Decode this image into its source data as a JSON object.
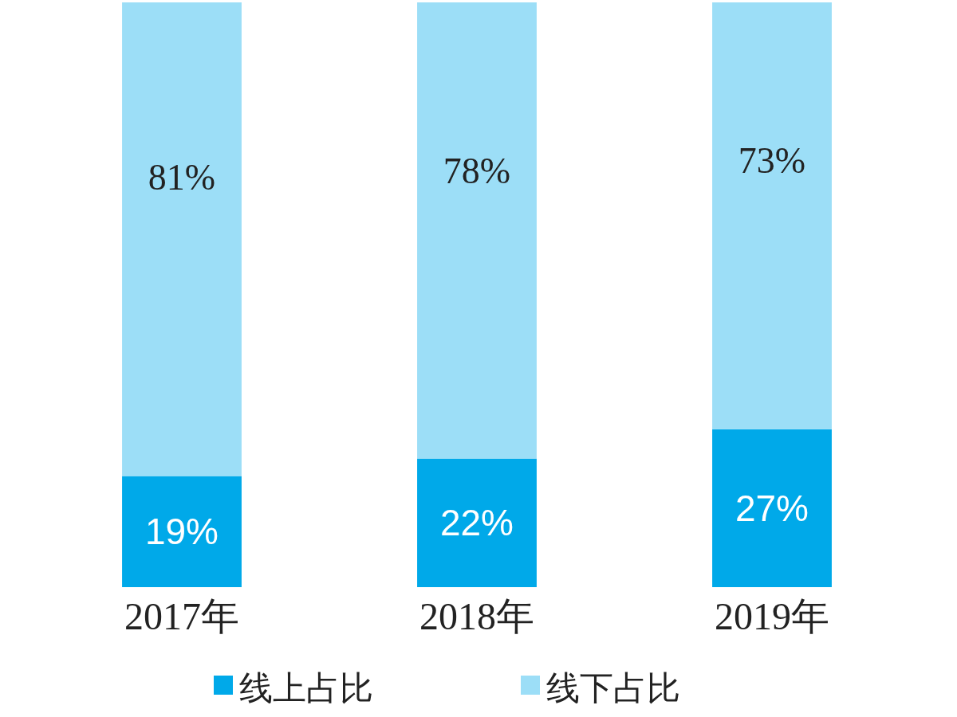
{
  "chart_data": {
    "type": "bar",
    "stacked": true,
    "categories": [
      "2017年",
      "2018年",
      "2019年"
    ],
    "series": [
      {
        "name": "线上占比",
        "color": "#00a9e9",
        "values": [
          19,
          22,
          27
        ],
        "value_labels": [
          "19%",
          "22%",
          "27%"
        ]
      },
      {
        "name": "线下占比",
        "color": "#9cdef7",
        "values": [
          81,
          78,
          73
        ],
        "value_labels": [
          "81%",
          "78%",
          "73%"
        ]
      }
    ],
    "legend": "bottom"
  }
}
